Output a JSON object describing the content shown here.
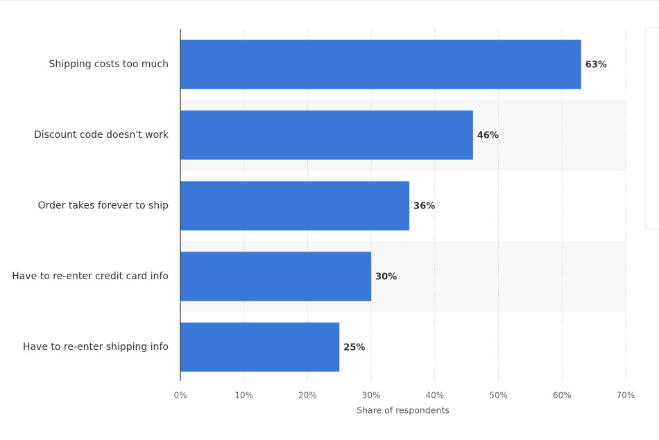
{
  "chart_data": {
    "type": "bar",
    "orientation": "horizontal",
    "x_label": "Share of respondents",
    "categories": [
      "Shipping costs too much",
      "Discount code doesn't work",
      "Order takes forever to ship",
      "Have to re-enter credit card info",
      "Have to re-enter shipping info"
    ],
    "values": [
      63,
      46,
      36,
      30,
      25
    ],
    "value_labels": [
      "63%",
      "46%",
      "36%",
      "30%",
      "25%"
    ],
    "color": "#3a78d8",
    "xlim": [
      0,
      70
    ],
    "xticks": [
      {
        "value": 0,
        "label": "0%"
      },
      {
        "value": 10,
        "label": "10%"
      },
      {
        "value": 20,
        "label": "20%"
      },
      {
        "value": 30,
        "label": "30%"
      },
      {
        "value": 40,
        "label": "40%"
      },
      {
        "value": 50,
        "label": "50%"
      },
      {
        "value": 60,
        "label": "60%"
      },
      {
        "value": 70,
        "label": "70%"
      }
    ],
    "grid": true
  }
}
